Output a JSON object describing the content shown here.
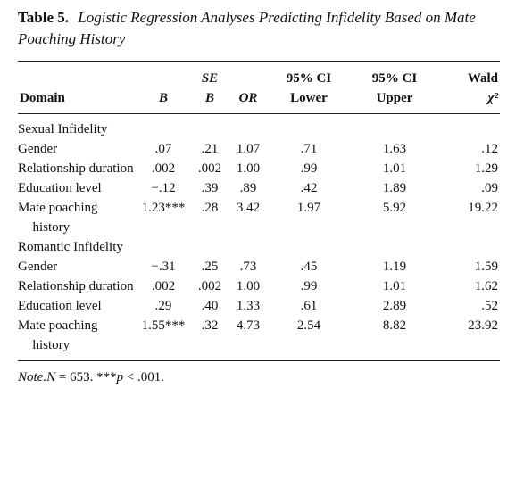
{
  "title": {
    "label": "Table 5.",
    "caption": "Logistic Regression Analyses Predicting Infidelity Based on Mate Poaching History"
  },
  "table": {
    "header": [
      [
        "Domain"
      ],
      [
        "B"
      ],
      [
        "SE",
        "B"
      ],
      [
        "OR"
      ],
      [
        "95% CI",
        "Lower"
      ],
      [
        "95% CI",
        "Upper"
      ],
      [
        "Wald",
        "χ²"
      ]
    ],
    "rows": [
      {
        "section": "Sexual Infidelity"
      },
      {
        "cells": [
          "Gender",
          ".07",
          ".21",
          "1.07",
          ".71",
          "1.63",
          ".12"
        ]
      },
      {
        "cells": [
          "Relationship duration",
          ".002",
          ".002",
          "1.00",
          ".99",
          "1.01",
          "1.29"
        ]
      },
      {
        "cells": [
          "Education level",
          "−.12",
          ".39",
          ".89",
          ".42",
          "1.89",
          ".09"
        ]
      },
      {
        "cells": [
          "Mate poaching history",
          "1.23***",
          ".28",
          "3.42",
          "1.97",
          "5.92",
          "19.22"
        ]
      },
      {
        "section": "Romantic Infidelity"
      },
      {
        "cells": [
          "Gender",
          "−.31",
          ".25",
          ".73",
          ".45",
          "1.19",
          "1.59"
        ]
      },
      {
        "cells": [
          "Relationship duration",
          ".002",
          ".002",
          "1.00",
          ".99",
          "1.01",
          "1.62"
        ]
      },
      {
        "cells": [
          "Education level",
          ".29",
          ".40",
          "1.33",
          ".61",
          "2.89",
          ".52"
        ]
      },
      {
        "cells": [
          "Mate poaching history",
          "1.55***",
          ".32",
          "4.73",
          "2.54",
          "8.82",
          "23.92"
        ]
      }
    ]
  },
  "note": [
    "Note.",
    "N",
    " = 653. ***",
    "p",
    " < .001."
  ]
}
